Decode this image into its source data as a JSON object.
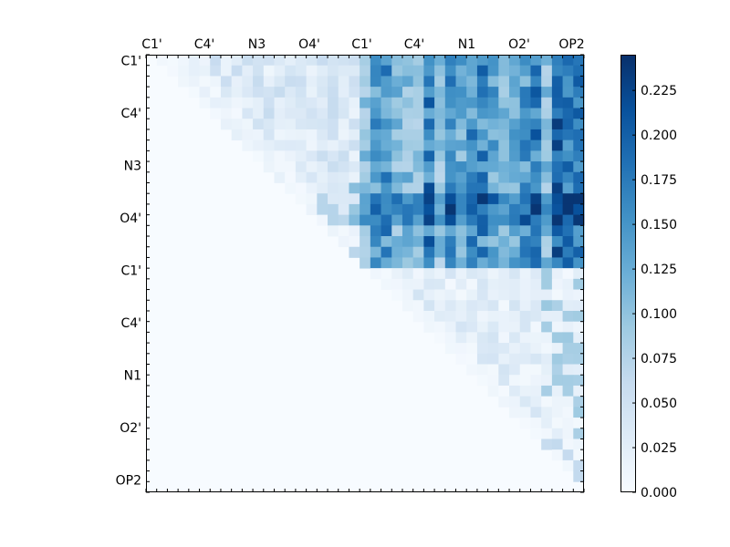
{
  "chart_data": {
    "type": "heatmap",
    "title": "",
    "xlabel": "",
    "ylabel": "",
    "n": 41,
    "x_tick_labels": [
      "C1'",
      "C4'",
      "N3",
      "O4'",
      "C1'",
      "C4'",
      "N1",
      "O2'",
      "OP2"
    ],
    "y_tick_labels": [
      "C1'",
      "C4'",
      "N3",
      "O4'",
      "C1'",
      "C4'",
      "N1",
      "O2'",
      "OP2"
    ],
    "colormap": "Blues",
    "colorbar": {
      "vmin": 0.0,
      "vmax": 0.245,
      "tick_values": [
        0.0,
        0.025,
        0.05,
        0.075,
        0.1,
        0.125,
        0.15,
        0.175,
        0.2,
        0.225
      ],
      "tick_labels": [
        "0.000",
        "0.025",
        "0.050",
        "0.075",
        "0.100",
        "0.125",
        "0.150",
        "0.175",
        "0.200",
        "0.225"
      ],
      "low_color": "#f7fbff",
      "high_color": "#08306b"
    },
    "layout": "upper-triangular",
    "block_means": [
      {
        "rows": "1-20",
        "cols": "1-20",
        "value": 0.03
      },
      {
        "rows": "1-20",
        "cols": "21-41",
        "value": 0.14
      },
      {
        "rows": "21-41",
        "cols": "21-41",
        "value": 0.035
      }
    ]
  }
}
